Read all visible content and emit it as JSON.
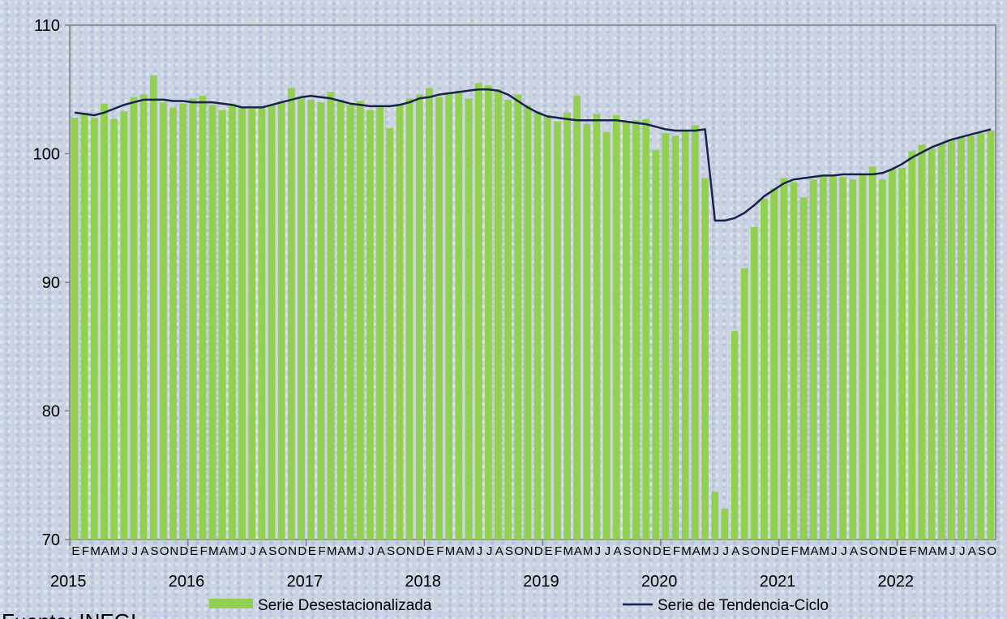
{
  "source": "Fuente: INEGI",
  "colors": {
    "bar": "#92d050",
    "line": "#17234a",
    "axis": "#808080"
  },
  "chart_data": {
    "type": "bar",
    "ylim": [
      70,
      110
    ],
    "y_ticks": [
      70,
      80,
      90,
      100,
      110
    ],
    "years": [
      "2015",
      "2016",
      "2017",
      "2018",
      "2019",
      "2020",
      "2021",
      "2022"
    ],
    "month_letters": [
      "E",
      "F",
      "M",
      "A",
      "M",
      "J",
      "J",
      "A",
      "S",
      "O",
      "N",
      "D"
    ],
    "series": [
      {
        "name": "Serie Desestacionalizada",
        "type": "bar",
        "values": [
          102.8,
          103.2,
          102.8,
          103.9,
          102.7,
          103.3,
          104.4,
          104.6,
          106.1,
          104.0,
          103.6,
          103.9,
          104.3,
          104.5,
          103.8,
          103.4,
          103.9,
          103.6,
          103.5,
          103.7,
          103.8,
          104.1,
          105.1,
          104.4,
          104.2,
          104.0,
          104.8,
          104.2,
          103.8,
          104.1,
          103.4,
          103.6,
          102.0,
          103.9,
          104.3,
          104.6,
          105.1,
          104.4,
          104.8,
          104.9,
          104.3,
          105.5,
          105.3,
          105.0,
          104.2,
          104.6,
          103.8,
          103.3,
          103.0,
          102.5,
          103.2,
          104.5,
          102.3,
          103.1,
          101.7,
          103.0,
          102.5,
          102.6,
          102.7,
          100.3,
          101.6,
          101.4,
          101.8,
          102.2,
          98.1,
          73.7,
          72.4,
          86.2,
          91.1,
          94.3,
          96.5,
          97.3,
          98.1,
          97.8,
          96.6,
          98.0,
          98.2,
          98.3,
          98.2,
          98.0,
          98.4,
          99.0,
          98.0,
          98.8,
          98.9,
          100.2,
          100.7,
          100.4,
          100.8,
          101.1,
          101.3,
          101.4,
          101.6,
          101.8
        ]
      },
      {
        "name": "Serie de Tendencia-Ciclo",
        "type": "line",
        "values": [
          103.2,
          103.1,
          103.0,
          103.2,
          103.5,
          103.8,
          104.0,
          104.2,
          104.2,
          104.2,
          104.1,
          104.1,
          104.0,
          104.0,
          104.0,
          103.9,
          103.8,
          103.6,
          103.6,
          103.6,
          103.8,
          104.0,
          104.2,
          104.4,
          104.5,
          104.4,
          104.3,
          104.1,
          103.9,
          103.8,
          103.7,
          103.7,
          103.7,
          103.8,
          104.0,
          104.3,
          104.4,
          104.6,
          104.7,
          104.8,
          104.9,
          105.0,
          105.0,
          104.9,
          104.6,
          104.1,
          103.6,
          103.2,
          102.9,
          102.8,
          102.7,
          102.6,
          102.6,
          102.6,
          102.6,
          102.6,
          102.5,
          102.4,
          102.3,
          102.1,
          101.9,
          101.8,
          101.8,
          101.8,
          101.9,
          94.8,
          94.8,
          95.0,
          95.4,
          96.0,
          96.7,
          97.2,
          97.7,
          98.0,
          98.1,
          98.2,
          98.3,
          98.3,
          98.4,
          98.4,
          98.4,
          98.4,
          98.5,
          98.8,
          99.2,
          99.7,
          100.1,
          100.5,
          100.8,
          101.1,
          101.3,
          101.5,
          101.7,
          101.9
        ]
      }
    ],
    "legend_position": "bottom"
  }
}
